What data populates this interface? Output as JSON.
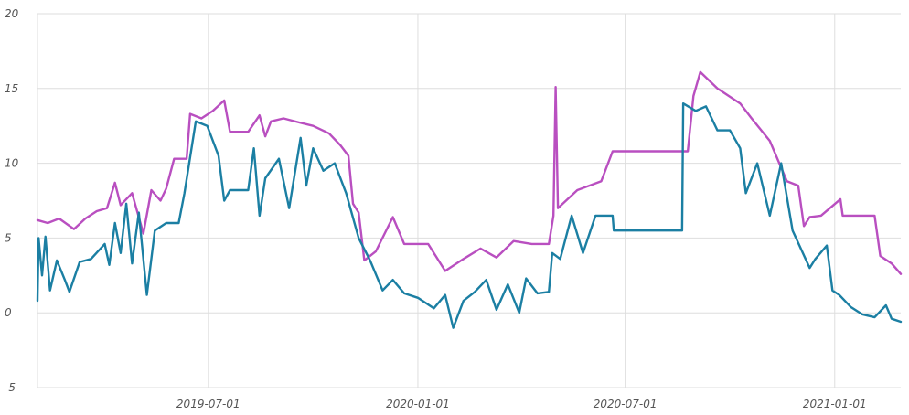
{
  "chart_data": {
    "type": "line",
    "title": "",
    "xlabel": "",
    "ylabel": "",
    "x_axis_kind": "date",
    "xlim": [
      "2019-02-01",
      "2021-02-28"
    ],
    "ylim": [
      -5,
      20
    ],
    "grid": true,
    "x_ticks": [
      "2019-07-01",
      "2020-01-01",
      "2020-07-01",
      "2021-01-01"
    ],
    "y_ticks": [
      -5,
      0,
      5,
      10,
      15,
      20
    ],
    "colors": {
      "upper": "#b94fc0",
      "lower": "#1b7fa3"
    },
    "series": [
      {
        "key": "upper",
        "points": [
          [
            "2019-02-01",
            6.2
          ],
          [
            "2019-02-10",
            6.0
          ],
          [
            "2019-02-20",
            6.3
          ],
          [
            "2019-03-05",
            5.6
          ],
          [
            "2019-03-15",
            6.3
          ],
          [
            "2019-03-25",
            6.8
          ],
          [
            "2019-04-03",
            7.0
          ],
          [
            "2019-04-10",
            8.7
          ],
          [
            "2019-04-15",
            7.2
          ],
          [
            "2019-04-25",
            8.0
          ],
          [
            "2019-05-05",
            5.3
          ],
          [
            "2019-05-12",
            8.2
          ],
          [
            "2019-05-20",
            7.5
          ],
          [
            "2019-05-25",
            8.3
          ],
          [
            "2019-06-01",
            10.3
          ],
          [
            "2019-06-12",
            10.3
          ],
          [
            "2019-06-15",
            13.3
          ],
          [
            "2019-06-25",
            13.0
          ],
          [
            "2019-07-05",
            13.5
          ],
          [
            "2019-07-15",
            14.2
          ],
          [
            "2019-07-20",
            12.1
          ],
          [
            "2019-08-05",
            12.1
          ],
          [
            "2019-08-15",
            13.2
          ],
          [
            "2019-08-20",
            11.8
          ],
          [
            "2019-08-25",
            12.8
          ],
          [
            "2019-09-05",
            13.0
          ],
          [
            "2019-09-20",
            12.7
          ],
          [
            "2019-10-01",
            12.5
          ],
          [
            "2019-10-15",
            12.0
          ],
          [
            "2019-10-25",
            11.2
          ],
          [
            "2019-11-01",
            10.5
          ],
          [
            "2019-11-05",
            7.3
          ],
          [
            "2019-11-10",
            6.7
          ],
          [
            "2019-11-15",
            3.5
          ],
          [
            "2019-11-25",
            4.1
          ],
          [
            "2019-12-10",
            6.4
          ],
          [
            "2019-12-20",
            4.6
          ],
          [
            "2020-01-10",
            4.6
          ],
          [
            "2020-01-25",
            2.8
          ],
          [
            "2020-02-10",
            3.6
          ],
          [
            "2020-02-25",
            4.3
          ],
          [
            "2020-03-10",
            3.7
          ],
          [
            "2020-03-25",
            4.8
          ],
          [
            "2020-04-10",
            4.6
          ],
          [
            "2020-04-25",
            4.6
          ],
          [
            "2020-04-29",
            6.5
          ],
          [
            "2020-05-01",
            15.1
          ],
          [
            "2020-05-03",
            7.0
          ],
          [
            "2020-05-20",
            8.2
          ],
          [
            "2020-06-10",
            8.8
          ],
          [
            "2020-06-20",
            10.8
          ],
          [
            "2020-08-25",
            10.8
          ],
          [
            "2020-08-30",
            14.5
          ],
          [
            "2020-09-05",
            16.1
          ],
          [
            "2020-09-20",
            15.0
          ],
          [
            "2020-10-10",
            14.0
          ],
          [
            "2020-10-20",
            13.0
          ],
          [
            "2020-11-05",
            11.5
          ],
          [
            "2020-11-20",
            8.8
          ],
          [
            "2020-11-30",
            8.5
          ],
          [
            "2020-12-05",
            5.8
          ],
          [
            "2020-12-10",
            6.4
          ],
          [
            "2020-12-20",
            6.5
          ],
          [
            "2021-01-06",
            7.6
          ],
          [
            "2021-01-08",
            6.5
          ],
          [
            "2021-02-05",
            6.5
          ],
          [
            "2021-02-10",
            3.8
          ],
          [
            "2021-02-20",
            3.3
          ],
          [
            "2021-02-28",
            2.6
          ]
        ]
      },
      {
        "key": "lower",
        "points": [
          [
            "2019-02-01",
            0.8
          ],
          [
            "2019-02-02",
            5.0
          ],
          [
            "2019-02-05",
            2.5
          ],
          [
            "2019-02-08",
            5.1
          ],
          [
            "2019-02-12",
            1.5
          ],
          [
            "2019-02-18",
            3.5
          ],
          [
            "2019-02-25",
            2.2
          ],
          [
            "2019-03-01",
            1.4
          ],
          [
            "2019-03-10",
            3.4
          ],
          [
            "2019-03-20",
            3.6
          ],
          [
            "2019-04-01",
            4.6
          ],
          [
            "2019-04-05",
            3.2
          ],
          [
            "2019-04-10",
            6.0
          ],
          [
            "2019-04-15",
            4.0
          ],
          [
            "2019-04-20",
            7.3
          ],
          [
            "2019-04-25",
            3.3
          ],
          [
            "2019-05-01",
            6.7
          ],
          [
            "2019-05-08",
            1.2
          ],
          [
            "2019-05-15",
            5.5
          ],
          [
            "2019-05-25",
            6.0
          ],
          [
            "2019-06-05",
            6.0
          ],
          [
            "2019-06-10",
            8.0
          ],
          [
            "2019-06-20",
            12.8
          ],
          [
            "2019-06-30",
            12.5
          ],
          [
            "2019-07-10",
            10.5
          ],
          [
            "2019-07-15",
            7.5
          ],
          [
            "2019-07-20",
            8.2
          ],
          [
            "2019-08-05",
            8.2
          ],
          [
            "2019-08-10",
            11.0
          ],
          [
            "2019-08-15",
            6.5
          ],
          [
            "2019-08-20",
            9.0
          ],
          [
            "2019-09-01",
            10.3
          ],
          [
            "2019-09-10",
            7.0
          ],
          [
            "2019-09-20",
            11.7
          ],
          [
            "2019-09-25",
            8.5
          ],
          [
            "2019-10-01",
            11.0
          ],
          [
            "2019-10-10",
            9.5
          ],
          [
            "2019-10-20",
            10.0
          ],
          [
            "2019-10-30",
            8.0
          ],
          [
            "2019-11-10",
            5.0
          ],
          [
            "2019-11-20",
            3.5
          ],
          [
            "2019-12-01",
            1.5
          ],
          [
            "2019-12-10",
            2.2
          ],
          [
            "2019-12-20",
            1.3
          ],
          [
            "2020-01-01",
            1.0
          ],
          [
            "2020-01-15",
            0.3
          ],
          [
            "2020-01-25",
            1.2
          ],
          [
            "2020-02-01",
            -1.0
          ],
          [
            "2020-02-10",
            0.8
          ],
          [
            "2020-02-20",
            1.4
          ],
          [
            "2020-03-01",
            2.2
          ],
          [
            "2020-03-10",
            0.2
          ],
          [
            "2020-03-20",
            1.9
          ],
          [
            "2020-03-30",
            0.0
          ],
          [
            "2020-04-05",
            2.3
          ],
          [
            "2020-04-15",
            1.3
          ],
          [
            "2020-04-25",
            1.4
          ],
          [
            "2020-04-28",
            4.0
          ],
          [
            "2020-05-05",
            3.6
          ],
          [
            "2020-05-15",
            6.5
          ],
          [
            "2020-05-25",
            4.0
          ],
          [
            "2020-06-05",
            6.5
          ],
          [
            "2020-06-20",
            6.5
          ],
          [
            "2020-06-21",
            5.5
          ],
          [
            "2020-08-20",
            5.5
          ],
          [
            "2020-08-21",
            14.0
          ],
          [
            "2020-09-01",
            13.5
          ],
          [
            "2020-09-10",
            13.8
          ],
          [
            "2020-09-20",
            12.2
          ],
          [
            "2020-10-01",
            12.2
          ],
          [
            "2020-10-10",
            11.0
          ],
          [
            "2020-10-15",
            8.0
          ],
          [
            "2020-10-25",
            10.0
          ],
          [
            "2020-11-05",
            6.5
          ],
          [
            "2020-11-15",
            10.0
          ],
          [
            "2020-11-25",
            5.5
          ],
          [
            "2020-12-01",
            4.5
          ],
          [
            "2020-12-10",
            3.0
          ],
          [
            "2020-12-15",
            3.6
          ],
          [
            "2020-12-25",
            4.5
          ],
          [
            "2020-12-30",
            1.5
          ],
          [
            "2021-01-05",
            1.2
          ],
          [
            "2021-01-15",
            0.4
          ],
          [
            "2021-01-25",
            -0.1
          ],
          [
            "2021-02-05",
            -0.3
          ],
          [
            "2021-02-15",
            0.5
          ],
          [
            "2021-02-20",
            -0.4
          ],
          [
            "2021-02-28",
            -0.6
          ]
        ]
      }
    ]
  }
}
